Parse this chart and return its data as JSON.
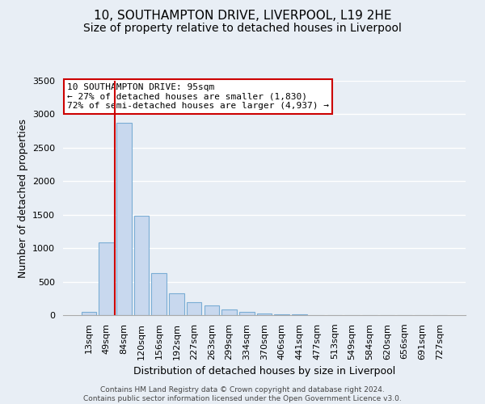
{
  "title": "10, SOUTHAMPTON DRIVE, LIVERPOOL, L19 2HE",
  "subtitle": "Size of property relative to detached houses in Liverpool",
  "xlabel": "Distribution of detached houses by size in Liverpool",
  "ylabel": "Number of detached properties",
  "footer_lines": [
    "Contains HM Land Registry data © Crown copyright and database right 2024.",
    "Contains public sector information licensed under the Open Government Licence v3.0."
  ],
  "bin_labels": [
    "13sqm",
    "49sqm",
    "84sqm",
    "120sqm",
    "156sqm",
    "192sqm",
    "227sqm",
    "263sqm",
    "299sqm",
    "334sqm",
    "370sqm",
    "406sqm",
    "441sqm",
    "477sqm",
    "513sqm",
    "549sqm",
    "584sqm",
    "620sqm",
    "656sqm",
    "691sqm",
    "727sqm"
  ],
  "bar_values": [
    50,
    1090,
    2870,
    1480,
    630,
    330,
    190,
    150,
    90,
    50,
    30,
    15,
    10,
    5,
    2,
    0,
    0,
    0,
    0,
    0,
    0
  ],
  "bar_color": "#c8d8ee",
  "bar_edge_color": "#7aadd4",
  "vline_color": "#cc0000",
  "vline_position": 1.5,
  "annotation_title": "10 SOUTHAMPTON DRIVE: 95sqm",
  "annotation_line1": "← 27% of detached houses are smaller (1,830)",
  "annotation_line2": "72% of semi-detached houses are larger (4,937) →",
  "annotation_box_facecolor": "white",
  "annotation_box_edgecolor": "#cc0000",
  "ylim": [
    0,
    3500
  ],
  "yticks": [
    0,
    500,
    1000,
    1500,
    2000,
    2500,
    3000,
    3500
  ],
  "background_color": "#e8eef5",
  "plot_background": "#e8eef5",
  "grid_color": "#ffffff",
  "title_fontsize": 11,
  "subtitle_fontsize": 10,
  "ylabel_fontsize": 9,
  "xlabel_fontsize": 9,
  "tick_fontsize": 8,
  "annotation_fontsize": 8,
  "footer_fontsize": 6.5
}
